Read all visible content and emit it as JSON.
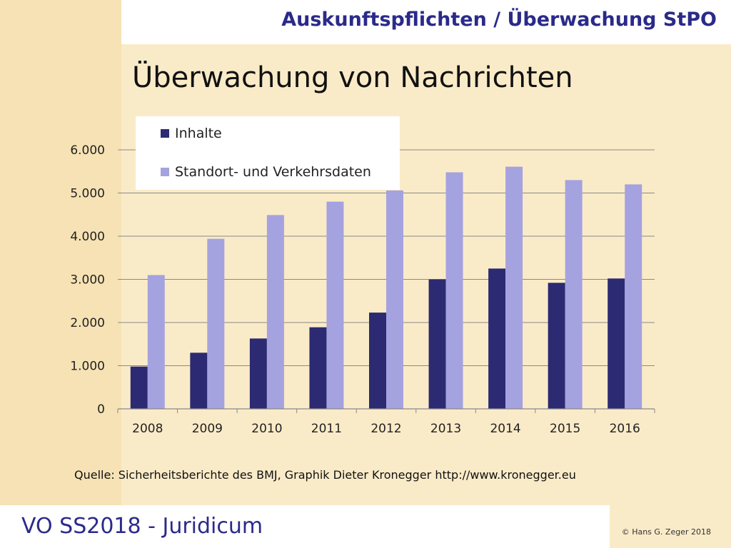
{
  "header": {
    "title": "Auskunftspflichten / Überwachung StPO"
  },
  "slide": {
    "title": "Überwachung von Nachrichten"
  },
  "chart_data": {
    "type": "bar",
    "title": "",
    "xlabel": "",
    "ylabel": "",
    "categories": [
      "2008",
      "2009",
      "2010",
      "2011",
      "2012",
      "2013",
      "2014",
      "2015",
      "2016"
    ],
    "series": [
      {
        "name": "Inhalte",
        "color": "#2b2a72",
        "values": [
          980,
          1300,
          1630,
          1890,
          2230,
          3000,
          3250,
          2920,
          3020
        ]
      },
      {
        "name": "Standort- und Verkehrsdaten",
        "color": "#a5a2e0",
        "values": [
          3100,
          3940,
          4490,
          4800,
          5060,
          5480,
          5610,
          5300,
          5200
        ]
      }
    ],
    "ylim": [
      0,
      6000
    ],
    "yticks": [
      "0",
      "1.000",
      "2.000",
      "3.000",
      "4.000",
      "5.000",
      "6.000"
    ],
    "grid": true,
    "legend": "top-left"
  },
  "source": {
    "text": "Quelle: Sicherheitsberichte des BMJ, Graphik Dieter Kronegger http://www.kronegger.eu"
  },
  "footer": {
    "course": "VO SS2018 - Juridicum",
    "copyright": "© Hans G. Zeger 2018"
  }
}
